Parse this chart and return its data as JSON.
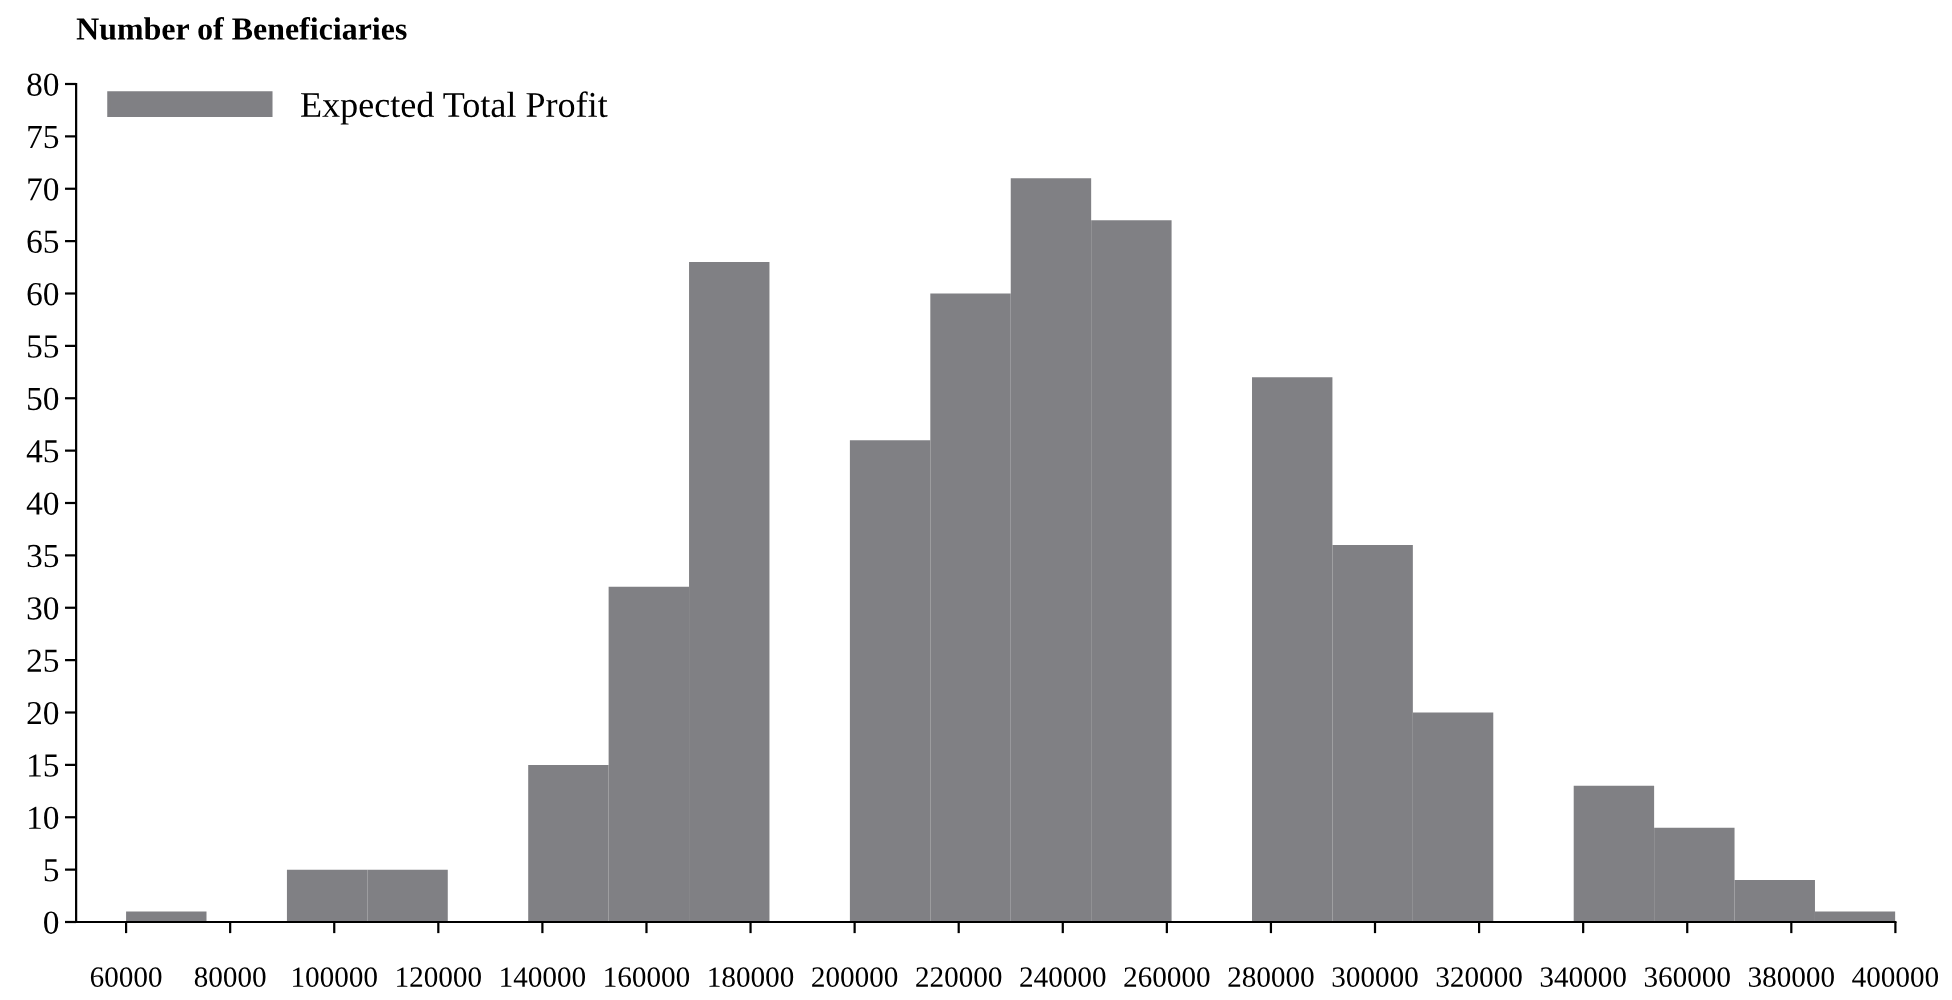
{
  "chart_data": {
    "type": "histogram",
    "ylabel": "Number of Beneficiaries",
    "bins": [
      60000,
      75455,
      90909,
      106364,
      121818,
      137273,
      152727,
      168182,
      183636,
      199091,
      214545,
      230000,
      245455,
      260909,
      276364,
      291818,
      307273,
      322727,
      338182,
      353636,
      369091,
      384545,
      400000
    ],
    "series": [
      {
        "name": "Expected Total Profit",
        "color": "#808084",
        "values": [
          1,
          0,
          5,
          5,
          0,
          15,
          32,
          63,
          0,
          46,
          60,
          71,
          67,
          0,
          52,
          36,
          20,
          0,
          13,
          9,
          4,
          1
        ]
      }
    ],
    "xlim": [
      50400,
      400000
    ],
    "ylim": [
      0,
      80
    ],
    "xticks": [
      60000,
      80000,
      100000,
      120000,
      140000,
      160000,
      180000,
      200000,
      220000,
      240000,
      260000,
      280000,
      300000,
      320000,
      340000,
      360000,
      380000,
      400000
    ],
    "yticks": [
      0,
      5,
      10,
      15,
      20,
      25,
      30,
      35,
      40,
      45,
      50,
      55,
      60,
      65,
      70,
      75,
      80
    ],
    "grid": false,
    "legend": "top left"
  }
}
